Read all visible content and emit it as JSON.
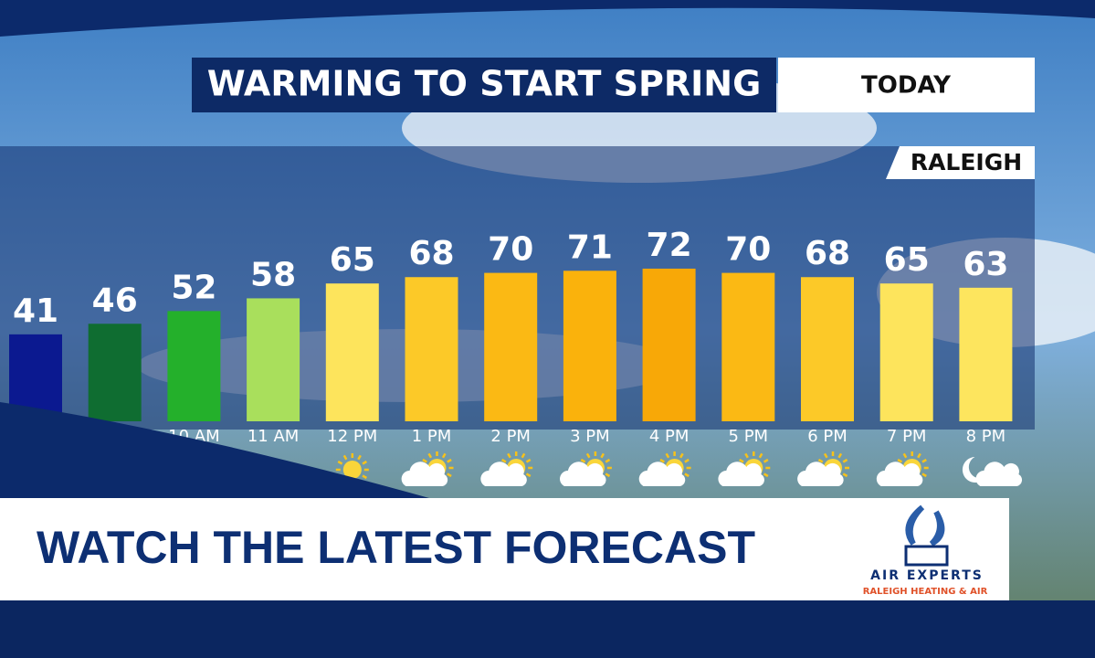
{
  "chart_data": {
    "type": "bar",
    "title": "WARMING TO START SPRING",
    "subtitle": "TODAY",
    "location": "RALEIGH",
    "categories": [
      null,
      null,
      "10 AM",
      "11 AM",
      "12 PM",
      "1 PM",
      "2 PM",
      "3 PM",
      "4 PM",
      "5 PM",
      "6 PM",
      "7 PM",
      "8 PM"
    ],
    "values": [
      41,
      46,
      52,
      58,
      65,
      68,
      70,
      71,
      72,
      70,
      68,
      65,
      63
    ],
    "colors": [
      "#0b1990",
      "#0f6d31",
      "#24b02b",
      "#a9df5c",
      "#fde45c",
      "#fcc928",
      "#fbb914",
      "#fab20c",
      "#f8a807",
      "#fbb914",
      "#fcc928",
      "#fde45c",
      "#fde55e"
    ],
    "ylim": [
      0,
      100
    ]
  },
  "banner": {
    "text": "WATCH THE LATEST FORECAST"
  },
  "sponsor": {
    "name": "AIR EXPERTS",
    "tagline": "RALEIGH HEATING & AIR"
  }
}
